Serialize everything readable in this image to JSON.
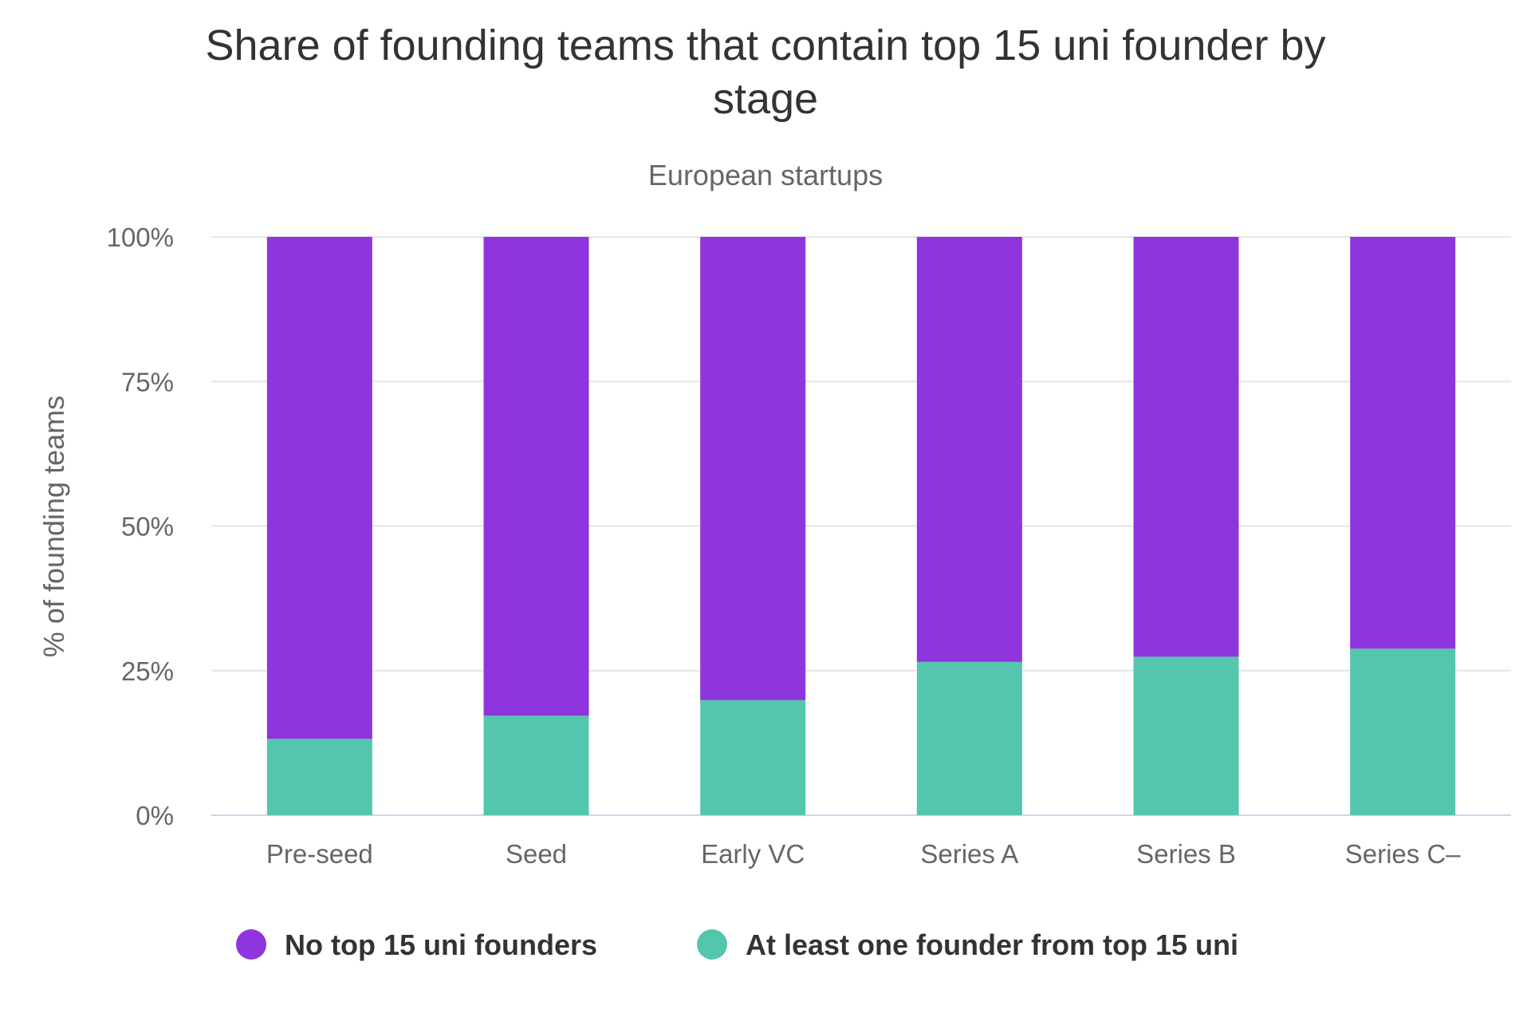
{
  "chart_data": {
    "type": "bar",
    "stacked": true,
    "title": "Share of founding teams that contain top 15 uni founder by stage",
    "title_lines": [
      "Share of founding teams that contain top 15 uni founder by",
      "stage"
    ],
    "subtitle": "European startups",
    "ylabel": "% of founding teams",
    "xlabel": "",
    "ylim": [
      0,
      100
    ],
    "yticks": [
      "0%",
      "25%",
      "50%",
      "75%",
      "100%"
    ],
    "ytick_values": [
      0,
      25,
      50,
      75,
      100
    ],
    "categories": [
      "Pre-seed",
      "Seed",
      "Early VC",
      "Series A",
      "Series B",
      "Series C–"
    ],
    "series": [
      {
        "name": "At least one founder from top 15 uni",
        "color": "#54c6ad",
        "values": [
          13.2,
          17.2,
          19.9,
          26.5,
          27.4,
          28.8
        ]
      },
      {
        "name": "No top 15 uni founders",
        "color": "#8e35dd",
        "values": [
          86.8,
          82.8,
          80.1,
          73.5,
          72.6,
          71.2
        ]
      }
    ],
    "legend": {
      "placement": "bottom-center",
      "items": [
        {
          "label": "No top 15 uni founders",
          "color": "#8e35dd"
        },
        {
          "label": "At least one founder from top 15 uni",
          "color": "#54c6ad"
        }
      ]
    },
    "grid": true
  }
}
